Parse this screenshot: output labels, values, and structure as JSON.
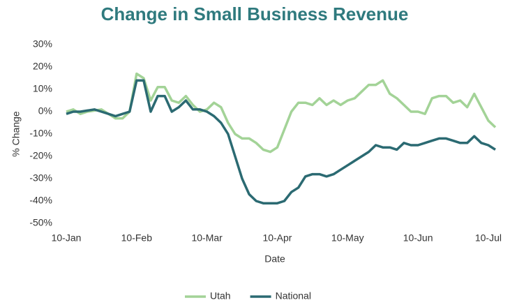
{
  "chart_data": {
    "type": "line",
    "title": "Change in Small Business Revenue",
    "x_label": "Date",
    "y_label": "% Change",
    "categories": [
      "10-Jan",
      null,
      null,
      null,
      null,
      null,
      null,
      null,
      null,
      null,
      "10-Feb",
      null,
      null,
      null,
      null,
      null,
      null,
      null,
      null,
      null,
      "10-Mar",
      null,
      null,
      null,
      null,
      null,
      null,
      null,
      null,
      null,
      "10-Apr",
      null,
      null,
      null,
      null,
      null,
      null,
      null,
      null,
      null,
      "10-May",
      null,
      null,
      null,
      null,
      null,
      null,
      null,
      null,
      null,
      "10-Jun",
      null,
      null,
      null,
      null,
      null,
      null,
      null,
      null,
      null,
      "10-Jul",
      null
    ],
    "series": [
      {
        "name": "Utah",
        "color": "#a3d397",
        "values": [
          0,
          1,
          -1,
          0,
          0.5,
          1,
          -1,
          -3,
          -3,
          0,
          17,
          15,
          5,
          11,
          11,
          5,
          4,
          7,
          3,
          0,
          1,
          4,
          2,
          -5,
          -10,
          -12,
          -12,
          -14,
          -17,
          -18,
          -16,
          -8,
          0,
          4,
          4,
          3,
          6,
          3,
          5,
          3,
          5,
          6,
          9,
          12,
          12,
          14,
          8,
          6,
          3,
          0,
          0,
          -1,
          6,
          7,
          7,
          4,
          5,
          2,
          8,
          2,
          -4,
          -7
        ]
      },
      {
        "name": "National",
        "color": "#2b6a72",
        "values": [
          -1,
          0,
          0,
          0.5,
          1,
          0,
          -1,
          -2,
          -1,
          0,
          14,
          14,
          0,
          7,
          7,
          0,
          2,
          5,
          1,
          1,
          0,
          -2,
          -5,
          -10,
          -20,
          -30,
          -37,
          -40,
          -41,
          -41,
          -41,
          -40,
          -36,
          -34,
          -29,
          -28,
          -28,
          -29,
          -28,
          -26,
          -24,
          -22,
          -20,
          -18,
          -15,
          -16,
          -16,
          -17,
          -14,
          -15,
          -15,
          -14,
          -13,
          -12,
          -12,
          -13,
          -14,
          -14,
          -11,
          -14,
          -15,
          -17
        ]
      }
    ],
    "ylim": [
      -50,
      30
    ],
    "yticks": [
      {
        "value": -50,
        "label": "-50%"
      },
      {
        "value": -40,
        "label": "-40%"
      },
      {
        "value": -30,
        "label": "-30%"
      },
      {
        "value": -20,
        "label": "-20%"
      },
      {
        "value": -10,
        "label": "-10%"
      },
      {
        "value": 0,
        "label": "0%"
      },
      {
        "value": 10,
        "label": "10%"
      },
      {
        "value": 20,
        "label": "20%"
      },
      {
        "value": 30,
        "label": "30%"
      }
    ],
    "grid": false,
    "legend": "bottom",
    "title_color": "#2f7a7e"
  }
}
